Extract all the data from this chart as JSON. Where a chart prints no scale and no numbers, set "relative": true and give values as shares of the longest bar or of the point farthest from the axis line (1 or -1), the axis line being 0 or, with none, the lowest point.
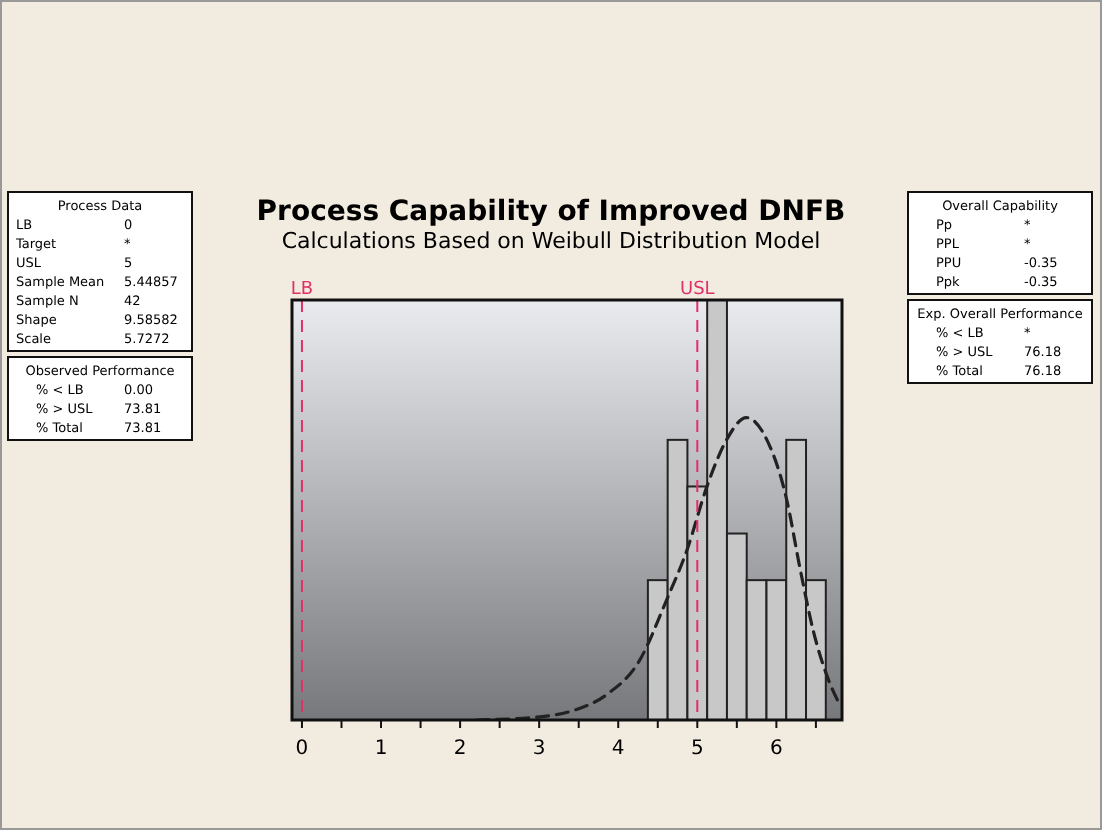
{
  "chart_data": [
    {
      "type": "histogram",
      "title": "Process Capability of Improved DNFB",
      "subtitle": "Calculations Based on Weibull Distribution Model",
      "relative": true,
      "bins": [
        4.375,
        4.625,
        4.875,
        5.125,
        5.375,
        5.625,
        5.875,
        6.125,
        6.375,
        6.625
      ],
      "series": [
        {
          "type": "histogram",
          "color": "#c8c8c8",
          "values": [
            0.333,
            0.667,
            0.556,
            1,
            0.444,
            0.333,
            0.333,
            0.667,
            0.333
          ]
        },
        {
          "type": "line",
          "color": "#222222",
          "line_style": "dashed",
          "x": [
            2.21,
            3.01,
            3.43,
            3.85,
            4.27,
            4.61,
            4.87,
            5.12,
            5.37,
            5.62,
            5.88,
            6.13,
            6.3,
            6.47,
            6.64,
            6.8
          ],
          "values": [
            0,
            0.0075,
            0.0225,
            0.06,
            0.142,
            0.285,
            0.405,
            0.555,
            0.667,
            0.72,
            0.667,
            0.525,
            0.36,
            0.21,
            0.105,
            0.037
          ]
        }
      ],
      "xlim": [
        -0.126,
        6.83
      ],
      "xticks": [
        0,
        {
          "value": 0.5,
          "label": null
        },
        1,
        {
          "value": 1.5,
          "label": null
        },
        2,
        {
          "value": 2.5,
          "label": null
        },
        3,
        {
          "value": 3.5,
          "label": null
        },
        4,
        {
          "value": 4.5,
          "label": null
        },
        5,
        {
          "value": 5.5,
          "label": null
        },
        6,
        {
          "value": 6.5,
          "label": null
        }
      ],
      "ref_lines": [
        {
          "axis": "x",
          "value": 0,
          "label": "LB",
          "color": "#e0306a",
          "line_style": "dashed"
        },
        {
          "axis": "x",
          "value": 5,
          "label": "USL",
          "color": "#e0306a",
          "line_style": "dashed"
        }
      ],
      "grid": false
    },
    {
      "type": "other",
      "title": "Process Data",
      "annotations": [
        "LB 0",
        "Target *",
        "USL 5",
        "Sample Mean 5.44857",
        "Sample N 42",
        "Shape 9.58582",
        "Scale 5.7272"
      ]
    },
    {
      "type": "other",
      "title": "Observed Performance",
      "annotations": [
        "% < LB 0.00",
        "% > USL 73.81",
        "% Total 73.81"
      ]
    },
    {
      "type": "other",
      "title": "Overall Capability",
      "annotations": [
        "Pp *",
        "PPL *",
        "PPU -0.35",
        "Ppk -0.35"
      ]
    },
    {
      "type": "other",
      "title": "Exp. Overall Performance",
      "annotations": [
        "% < LB *",
        "% > USL 76.18",
        "% Total 76.18"
      ]
    }
  ]
}
